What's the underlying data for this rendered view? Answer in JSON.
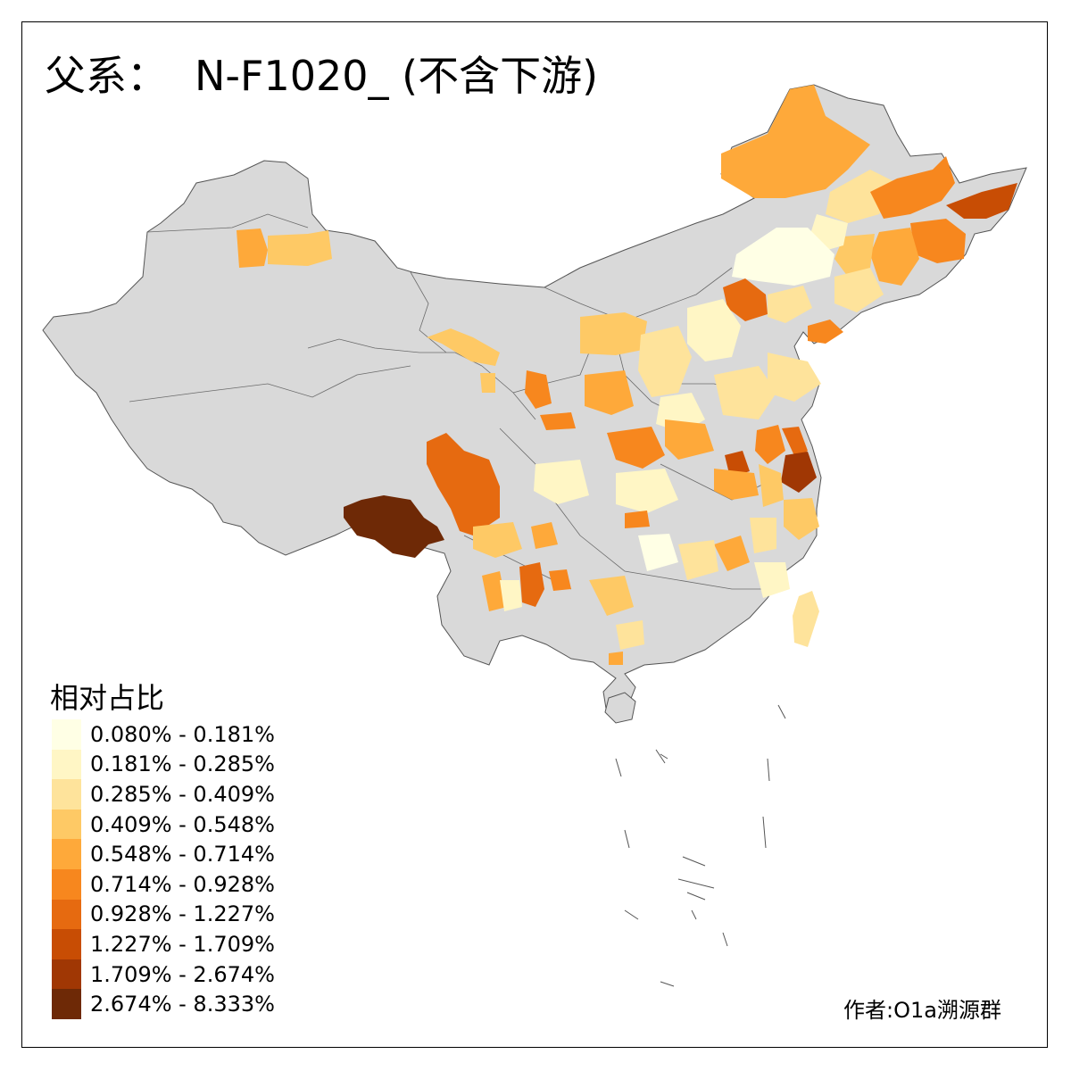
{
  "title": {
    "label": "父系：",
    "code": "N-F1020_ (不含下游)"
  },
  "legend": {
    "title": "相对占比",
    "bins": [
      {
        "label": "0.080% - 0.181%",
        "color": "#ffffe5"
      },
      {
        "label": "0.181% - 0.285%",
        "color": "#fff6c5"
      },
      {
        "label": "0.285% - 0.409%",
        "color": "#fee39b"
      },
      {
        "label": "0.409% - 0.548%",
        "color": "#fec965"
      },
      {
        "label": "0.548% - 0.714%",
        "color": "#fea93a"
      },
      {
        "label": "0.714% - 0.928%",
        "color": "#f7871e"
      },
      {
        "label": "0.928% - 1.227%",
        "color": "#e66a10"
      },
      {
        "label": "1.227% - 1.709%",
        "color": "#c84d04"
      },
      {
        "label": "1.709% - 2.674%",
        "color": "#a03704"
      },
      {
        "label": "2.674% - 8.333%",
        "color": "#6e2906"
      }
    ]
  },
  "credit": "作者:O1a溯源群",
  "no_data_color": "#d9d9d9"
}
